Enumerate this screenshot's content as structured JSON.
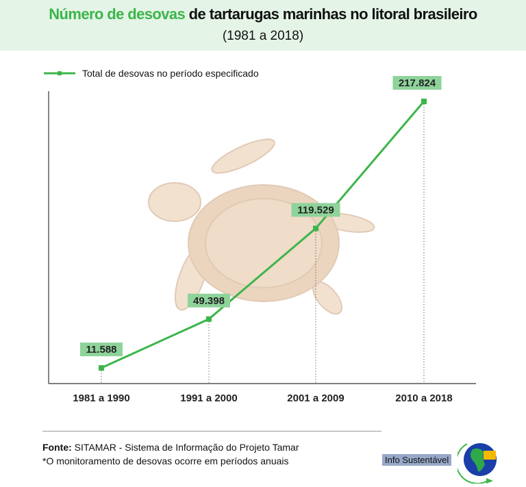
{
  "header": {
    "title_highlight": "Número de desovas",
    "title_rest": " de tartarugas marinhas no litoral brasileiro",
    "subtitle": "(1981 a 2018)"
  },
  "chart_data": {
    "type": "line",
    "title": "Número de desovas de tartarugas marinhas no litoral brasileiro",
    "subtitle": "(1981 a 2018)",
    "categories": [
      "1981 a 1990",
      "1991 a 2000",
      "2001 a 2009",
      "2010 a 2018"
    ],
    "series": [
      {
        "name": "Total de desovas no período especificado",
        "values": [
          11588,
          49398,
          119529,
          217824
        ],
        "labels": [
          "11.588",
          "49.398",
          "119.529",
          "217.824"
        ],
        "color": "#3cb54a"
      }
    ],
    "ylim": [
      0,
      230000
    ],
    "grid": false,
    "legend": "top-left",
    "label_bg": "#8ed39a"
  },
  "footer": {
    "source_label": "Fonte:",
    "source_text": " SITAMAR - Sistema de Informação do Projeto Tamar",
    "note": "*O monitoramento de desovas ocorre em períodos anuais",
    "brand": "Info Sustentável"
  }
}
